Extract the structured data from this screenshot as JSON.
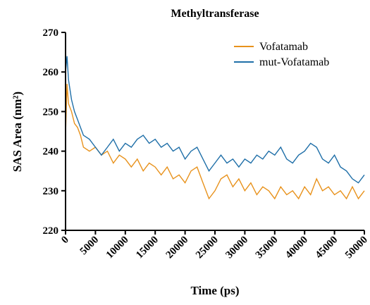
{
  "chart_data": {
    "type": "line",
    "title": "Methyltransferase",
    "xlabel": "Time (ps)",
    "ylabel": "SAS Area (nm²)",
    "x": [
      0,
      250,
      500,
      1000,
      1500,
      2000,
      2500,
      3000,
      4000,
      5000,
      6000,
      7000,
      8000,
      9000,
      10000,
      11000,
      12000,
      13000,
      14000,
      15000,
      16000,
      17000,
      18000,
      19000,
      20000,
      21000,
      22000,
      23000,
      24000,
      25000,
      26000,
      27000,
      28000,
      29000,
      30000,
      31000,
      32000,
      33000,
      34000,
      35000,
      36000,
      37000,
      38000,
      39000,
      40000,
      41000,
      42000,
      43000,
      44000,
      45000,
      46000,
      47000,
      48000,
      49000,
      50000
    ],
    "series": [
      {
        "name": "Vofatamab",
        "color": "#e8921c",
        "values": [
          244,
          257,
          252,
          250,
          247,
          246,
          244,
          241,
          240,
          241,
          239,
          240,
          237,
          239,
          238,
          236,
          238,
          235,
          237,
          236,
          234,
          236,
          233,
          234,
          232,
          235,
          236,
          232,
          228,
          230,
          233,
          234,
          231,
          233,
          230,
          232,
          229,
          231,
          230,
          228,
          231,
          229,
          230,
          228,
          231,
          229,
          233,
          230,
          231,
          229,
          230,
          228,
          231,
          228,
          230
        ]
      },
      {
        "name": "mut-Vofatamab",
        "color": "#1f6fa8",
        "values": [
          260,
          264,
          258,
          253,
          250,
          248,
          246,
          244,
          243,
          241,
          239,
          241,
          243,
          240,
          242,
          241,
          243,
          244,
          242,
          243,
          241,
          242,
          240,
          241,
          238,
          240,
          241,
          238,
          235,
          237,
          239,
          237,
          238,
          236,
          238,
          237,
          239,
          238,
          240,
          239,
          241,
          238,
          237,
          239,
          240,
          242,
          241,
          238,
          237,
          239,
          236,
          235,
          233,
          232,
          234
        ]
      }
    ],
    "xlim": [
      0,
      50000
    ],
    "xticks": [
      0,
      5000,
      10000,
      15000,
      20000,
      25000,
      30000,
      35000,
      40000,
      45000,
      50000
    ],
    "ylim": [
      220,
      270
    ],
    "yticks": [
      220,
      230,
      240,
      250,
      260,
      270
    ],
    "legend": "upper right"
  }
}
